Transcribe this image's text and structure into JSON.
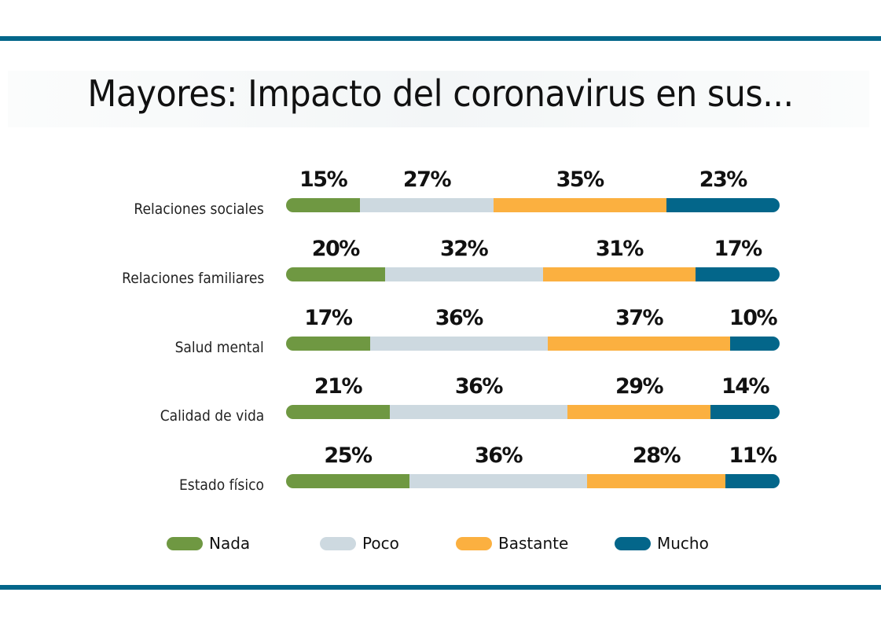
{
  "chart_data": {
    "type": "bar",
    "orientation": "horizontal",
    "stacked": true,
    "title": "Mayores: Impacto del coronavirus en sus...",
    "xlabel": "",
    "ylabel": "",
    "categories": [
      "Relaciones sociales",
      "Relaciones familiares",
      "Salud mental",
      "Calidad de vida",
      "Estado físico"
    ],
    "series": [
      {
        "name": "Nada",
        "color": "#6f9842",
        "values": [
          15,
          20,
          17,
          21,
          25
        ]
      },
      {
        "name": "Poco",
        "color": "#cdd9e0",
        "values": [
          27,
          32,
          36,
          36,
          36
        ]
      },
      {
        "name": "Bastante",
        "color": "#fbb040",
        "values": [
          35,
          31,
          37,
          29,
          28
        ]
      },
      {
        "name": "Mucho",
        "color": "#03668a",
        "values": [
          23,
          17,
          10,
          14,
          11
        ]
      }
    ],
    "value_suffix": "%",
    "xlim": [
      0,
      100
    ],
    "grid": false,
    "legend_position": "bottom"
  },
  "colors": {
    "rule": "#03668a"
  }
}
